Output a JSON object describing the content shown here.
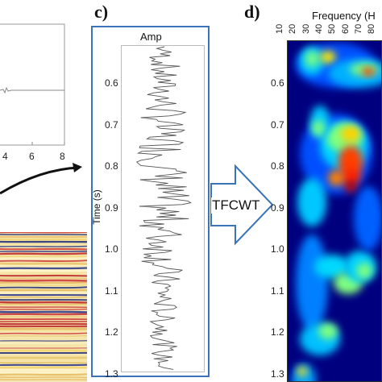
{
  "panel_b": {
    "x_ticks": [
      "4",
      "6",
      "8"
    ]
  },
  "panel_c": {
    "letter": "c)",
    "title": "Amp",
    "ylabel": "Time (s)",
    "y_ticks": [
      "0.6",
      "0.7",
      "0.8",
      "0.9",
      "1.0",
      "1.1",
      "1.2",
      "1.3"
    ],
    "border_color": "#3b73b9"
  },
  "arrow": {
    "label": "TFCWT",
    "color": "#3b73b9"
  },
  "panel_d": {
    "letter": "d)",
    "xlabel": "Frequency (H",
    "x_ticks": [
      "10",
      "20",
      "30",
      "40",
      "50",
      "60",
      "70",
      "80"
    ],
    "y_ticks": [
      "0.6",
      "0.7",
      "0.8",
      "0.9",
      "1.0",
      "1.1",
      "1.2",
      "1.3"
    ],
    "colormap": "jet"
  }
}
